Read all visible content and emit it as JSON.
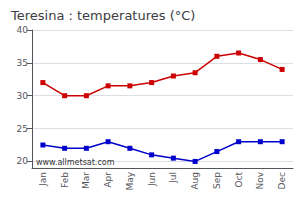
{
  "chart_data": {
    "type": "line",
    "title": "Teresina : temperatures (°C)",
    "categories": [
      "Jan",
      "Feb",
      "Mar",
      "Apr",
      "May",
      "Jun",
      "Jul",
      "Aug",
      "Sep",
      "Oct",
      "Nov",
      "Dec"
    ],
    "series": [
      {
        "color": "#cc0000",
        "marker": "square",
        "values": [
          32,
          30,
          30,
          31.5,
          31.5,
          32,
          33,
          33.5,
          36,
          36.5,
          35.5,
          34
        ]
      },
      {
        "color": "#0000cc",
        "marker": "square",
        "values": [
          22.5,
          22,
          22,
          23,
          22,
          21,
          20.5,
          20,
          21.5,
          23,
          23,
          23
        ]
      }
    ],
    "ylim": [
      19,
      40
    ],
    "yticks": [
      20,
      25,
      30,
      35,
      40
    ],
    "grid": true,
    "annotations": [
      "www.allmetsat.com"
    ]
  }
}
